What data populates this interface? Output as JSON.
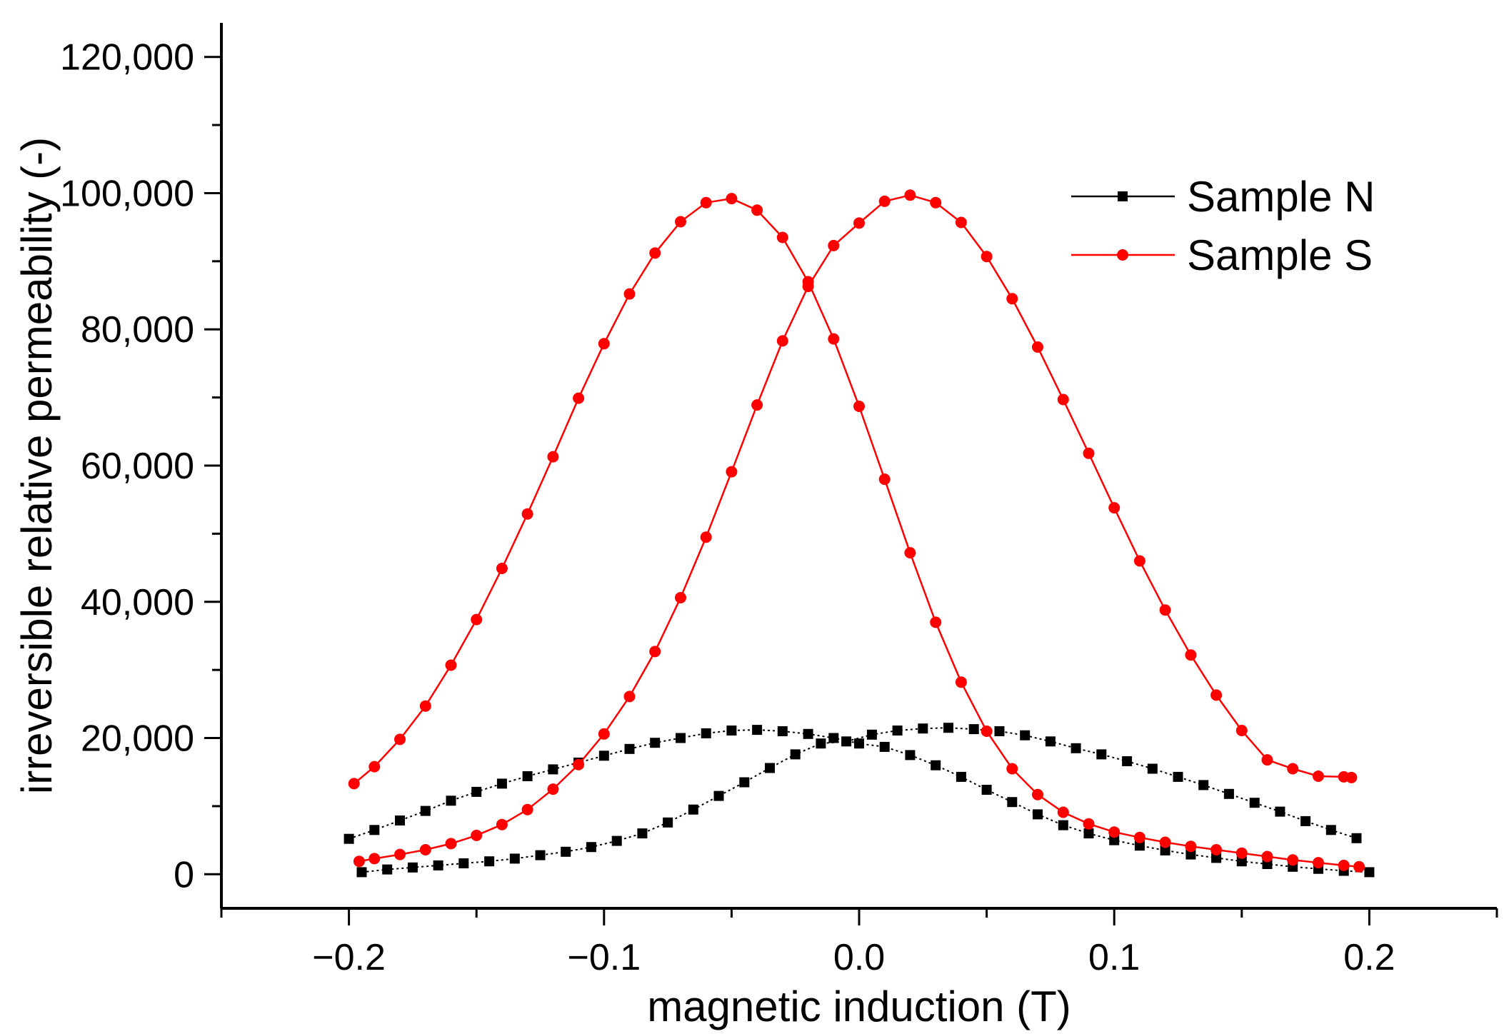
{
  "chart_data": {
    "type": "line",
    "title": "",
    "xlabel": "magnetic induction (T)",
    "ylabel": "irreversible relative permeability (-)",
    "xlim": [
      -0.25,
      0.25
    ],
    "ylim": [
      -5000,
      125000
    ],
    "x_ticks": [
      -0.2,
      -0.1,
      0.0,
      0.1,
      0.2
    ],
    "x_tick_labels": [
      "−0.2",
      "−0.1",
      "0.0",
      "0.1",
      "0.2"
    ],
    "y_ticks": [
      0,
      20000,
      40000,
      60000,
      80000,
      100000,
      120000
    ],
    "y_tick_labels": [
      "0",
      "20,000",
      "40,000",
      "60,000",
      "80,000",
      "100,000",
      "120,000"
    ],
    "legend_position": "top-right",
    "series": [
      {
        "name": "Sample N",
        "color": "#000000",
        "marker": "square",
        "branches": [
          {
            "x": [
              -0.2,
              -0.19,
              -0.18,
              -0.17,
              -0.16,
              -0.15,
              -0.14,
              -0.13,
              -0.12,
              -0.11,
              -0.1,
              -0.09,
              -0.08,
              -0.07,
              -0.06,
              -0.05,
              -0.04,
              -0.03,
              -0.02,
              -0.01,
              0.0,
              0.01,
              0.02,
              0.03,
              0.04,
              0.05,
              0.06,
              0.07,
              0.08,
              0.09,
              0.1,
              0.11,
              0.12,
              0.13,
              0.14,
              0.15,
              0.16,
              0.17,
              0.18,
              0.19,
              0.2
            ],
            "y": [
              5200,
              6500,
              7900,
              9300,
              10800,
              12100,
              13300,
              14400,
              15400,
              16400,
              17400,
              18400,
              19300,
              20000,
              20700,
              21100,
              21200,
              21000,
              20600,
              20000,
              19200,
              18700,
              17500,
              16000,
              14300,
              12400,
              10600,
              8800,
              7200,
              6000,
              5000,
              4200,
              3500,
              2900,
              2400,
              1900,
              1500,
              1100,
              800,
              500,
              300
            ]
          },
          {
            "x": [
              -0.195,
              -0.185,
              -0.175,
              -0.165,
              -0.155,
              -0.145,
              -0.135,
              -0.125,
              -0.115,
              -0.105,
              -0.095,
              -0.085,
              -0.075,
              -0.065,
              -0.055,
              -0.045,
              -0.035,
              -0.025,
              -0.015,
              -0.005,
              0.005,
              0.015,
              0.025,
              0.035,
              0.045,
              0.055,
              0.065,
              0.075,
              0.085,
              0.095,
              0.105,
              0.115,
              0.125,
              0.135,
              0.145,
              0.155,
              0.165,
              0.175,
              0.185,
              0.195
            ],
            "y": [
              300,
              700,
              1000,
              1300,
              1600,
              1900,
              2300,
              2800,
              3300,
              4000,
              4900,
              6000,
              7600,
              9500,
              11500,
              13500,
              15600,
              17600,
              19200,
              19500,
              20500,
              21100,
              21400,
              21500,
              21300,
              21000,
              20400,
              19500,
              18500,
              17600,
              16600,
              15500,
              14300,
              13100,
              11800,
              10500,
              9200,
              7800,
              6500,
              5300
            ]
          }
        ]
      },
      {
        "name": "Sample S",
        "color": "#ff0000",
        "marker": "circle",
        "branches": [
          {
            "x": [
              -0.198,
              -0.19,
              -0.18,
              -0.17,
              -0.16,
              -0.15,
              -0.14,
              -0.13,
              -0.12,
              -0.11,
              -0.1,
              -0.09,
              -0.08,
              -0.07,
              -0.06,
              -0.05,
              -0.04,
              -0.03,
              -0.02,
              -0.01,
              0.0,
              0.01,
              0.02,
              0.03,
              0.04,
              0.05,
              0.06,
              0.07,
              0.08,
              0.09,
              0.1,
              0.11,
              0.12,
              0.13,
              0.14,
              0.15,
              0.16,
              0.17,
              0.18,
              0.19,
              0.196
            ],
            "y": [
              13300,
              15800,
              19800,
              24700,
              30700,
              37400,
              44900,
              52900,
              61300,
              69900,
              77900,
              85200,
              91200,
              95800,
              98600,
              99200,
              97500,
              93500,
              87000,
              78600,
              68700,
              58000,
              47200,
              37000,
              28200,
              21000,
              15500,
              11700,
              9100,
              7400,
              6200,
              5400,
              4700,
              4100,
              3600,
              3100,
              2600,
              2100,
              1700,
              1300,
              1100
            ]
          },
          {
            "x": [
              -0.196,
              -0.19,
              -0.18,
              -0.17,
              -0.16,
              -0.15,
              -0.14,
              -0.13,
              -0.12,
              -0.11,
              -0.1,
              -0.09,
              -0.08,
              -0.07,
              -0.06,
              -0.05,
              -0.04,
              -0.03,
              -0.02,
              -0.01,
              0.0,
              0.01,
              0.02,
              0.03,
              0.04,
              0.05,
              0.06,
              0.07,
              0.08,
              0.09,
              0.1,
              0.11,
              0.12,
              0.13,
              0.14,
              0.15,
              0.16,
              0.17,
              0.18,
              0.19,
              0.193
            ],
            "y": [
              1900,
              2300,
              2900,
              3600,
              4500,
              5700,
              7300,
              9500,
              12500,
              16100,
              20600,
              26100,
              32700,
              40600,
              49500,
              59100,
              68900,
              78300,
              86300,
              92300,
              95600,
              98800,
              99700,
              98600,
              95700,
              90700,
              84500,
              77400,
              69700,
              61800,
              53800,
              46000,
              38800,
              32200,
              26300,
              21100,
              16800,
              15500,
              14400,
              14300,
              14200
            ]
          }
        ]
      }
    ]
  }
}
